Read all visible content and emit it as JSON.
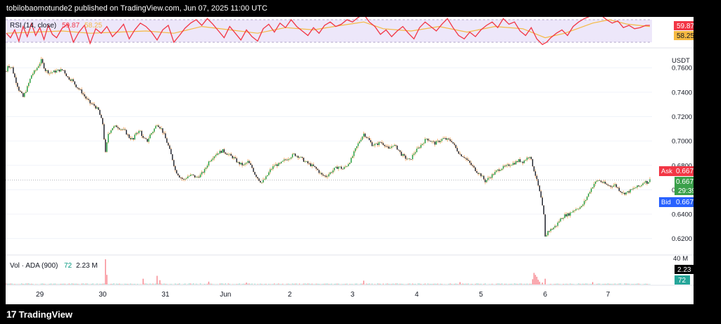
{
  "header": {
    "text": "tobilobaomotunde2 published on TradingView.com, Jun 07, 2025 11:00 UTC"
  },
  "footer": {
    "logo_text": "TradingView",
    "logo_mark": "17"
  },
  "chart_data": {
    "type": "candlestick",
    "symbol": "ADA",
    "quote_unit": "USDT",
    "interval": "15",
    "x_ticks": [
      "29",
      "30",
      "31",
      "Jun",
      "2",
      "3",
      "4",
      "5",
      "6",
      "7"
    ],
    "price_axis": {
      "ticks": [
        "0.7600",
        "0.7400",
        "0.7200",
        "0.7000",
        "0.6800",
        "0.6600",
        "0.6400",
        "0.6200"
      ],
      "range": [
        0.61,
        0.774
      ]
    },
    "price_path": [
      [
        0,
        0.757
      ],
      [
        1,
        0.762
      ],
      [
        4,
        0.76
      ],
      [
        6,
        0.752
      ],
      [
        9,
        0.742
      ],
      [
        12,
        0.736
      ],
      [
        15,
        0.744
      ],
      [
        18,
        0.754
      ],
      [
        21,
        0.758
      ],
      [
        25,
        0.766
      ],
      [
        28,
        0.758
      ],
      [
        31,
        0.756
      ],
      [
        35,
        0.757
      ],
      [
        38,
        0.758
      ],
      [
        41,
        0.758
      ],
      [
        44,
        0.752
      ],
      [
        47,
        0.75
      ],
      [
        50,
        0.745
      ],
      [
        54,
        0.74
      ],
      [
        57,
        0.735
      ],
      [
        60,
        0.731
      ],
      [
        63,
        0.729
      ],
      [
        66,
        0.725
      ],
      [
        69,
        0.714
      ],
      [
        71,
        0.69
      ],
      [
        73,
        0.706
      ],
      [
        76,
        0.711
      ],
      [
        79,
        0.712
      ],
      [
        82,
        0.71
      ],
      [
        85,
        0.708
      ],
      [
        88,
        0.703
      ],
      [
        91,
        0.701
      ],
      [
        93,
        0.707
      ],
      [
        96,
        0.708
      ],
      [
        98,
        0.702
      ],
      [
        101,
        0.7
      ],
      [
        103,
        0.705
      ],
      [
        105,
        0.708
      ],
      [
        108,
        0.714
      ],
      [
        111,
        0.71
      ],
      [
        113,
        0.705
      ],
      [
        116,
        0.696
      ],
      [
        119,
        0.685
      ],
      [
        121,
        0.676
      ],
      [
        124,
        0.671
      ],
      [
        127,
        0.668
      ],
      [
        130,
        0.671
      ],
      [
        133,
        0.672
      ],
      [
        136,
        0.67
      ],
      [
        139,
        0.672
      ],
      [
        142,
        0.676
      ],
      [
        145,
        0.683
      ],
      [
        148,
        0.687
      ],
      [
        151,
        0.69
      ],
      [
        155,
        0.692
      ],
      [
        159,
        0.689
      ],
      [
        163,
        0.686
      ],
      [
        166,
        0.682
      ],
      [
        170,
        0.68
      ],
      [
        173,
        0.683
      ],
      [
        176,
        0.678
      ],
      [
        178,
        0.673
      ],
      [
        181,
        0.668
      ],
      [
        183,
        0.666
      ],
      [
        186,
        0.67
      ],
      [
        189,
        0.676
      ],
      [
        192,
        0.68
      ],
      [
        196,
        0.681
      ],
      [
        199,
        0.684
      ],
      [
        202,
        0.686
      ],
      [
        206,
        0.689
      ],
      [
        210,
        0.687
      ],
      [
        214,
        0.683
      ],
      [
        217,
        0.681
      ],
      [
        220,
        0.679
      ],
      [
        223,
        0.676
      ],
      [
        226,
        0.672
      ],
      [
        229,
        0.671
      ],
      [
        232,
        0.674
      ],
      [
        235,
        0.677
      ],
      [
        238,
        0.679
      ],
      [
        241,
        0.677
      ],
      [
        244,
        0.68
      ],
      [
        247,
        0.685
      ],
      [
        250,
        0.693
      ],
      [
        253,
        0.7
      ],
      [
        256,
        0.706
      ],
      [
        259,
        0.702
      ],
      [
        262,
        0.697
      ],
      [
        265,
        0.697
      ],
      [
        268,
        0.699
      ],
      [
        271,
        0.697
      ],
      [
        274,
        0.693
      ],
      [
        277,
        0.697
      ],
      [
        280,
        0.694
      ],
      [
        283,
        0.689
      ],
      [
        286,
        0.686
      ],
      [
        289,
        0.684
      ],
      [
        292,
        0.69
      ],
      [
        295,
        0.694
      ],
      [
        298,
        0.698
      ],
      [
        301,
        0.702
      ],
      [
        304,
        0.7
      ],
      [
        307,
        0.698
      ],
      [
        310,
        0.7
      ],
      [
        313,
        0.702
      ],
      [
        316,
        0.701
      ],
      [
        319,
        0.7
      ],
      [
        322,
        0.694
      ],
      [
        325,
        0.689
      ],
      [
        328,
        0.687
      ],
      [
        331,
        0.683
      ],
      [
        334,
        0.679
      ],
      [
        337,
        0.675
      ],
      [
        340,
        0.672
      ],
      [
        343,
        0.667
      ],
      [
        346,
        0.67
      ],
      [
        349,
        0.673
      ],
      [
        352,
        0.676
      ],
      [
        355,
        0.678
      ],
      [
        358,
        0.679
      ],
      [
        361,
        0.681
      ],
      [
        364,
        0.682
      ],
      [
        367,
        0.684
      ],
      [
        370,
        0.683
      ],
      [
        373,
        0.686
      ],
      [
        375,
        0.688
      ],
      [
        377,
        0.68
      ],
      [
        379,
        0.672
      ],
      [
        381,
        0.663
      ],
      [
        383,
        0.653
      ],
      [
        385,
        0.639
      ],
      [
        386,
        0.621
      ],
      [
        388,
        0.626
      ],
      [
        391,
        0.628
      ],
      [
        394,
        0.631
      ],
      [
        397,
        0.636
      ],
      [
        400,
        0.639
      ],
      [
        403,
        0.64
      ],
      [
        406,
        0.643
      ],
      [
        409,
        0.645
      ],
      [
        412,
        0.646
      ],
      [
        415,
        0.652
      ],
      [
        418,
        0.659
      ],
      [
        421,
        0.665
      ],
      [
        424,
        0.668
      ],
      [
        427,
        0.666
      ],
      [
        430,
        0.664
      ],
      [
        433,
        0.663
      ],
      [
        436,
        0.664
      ],
      [
        439,
        0.66
      ],
      [
        442,
        0.657
      ],
      [
        445,
        0.658
      ],
      [
        448,
        0.66
      ],
      [
        451,
        0.662
      ],
      [
        454,
        0.663
      ],
      [
        457,
        0.667
      ],
      [
        459,
        0.666
      ],
      [
        461,
        0.668
      ]
    ],
    "labels": {
      "ask": {
        "tag": "Ask",
        "value": "0.6679"
      },
      "last": {
        "value": "0.6679",
        "countdown": "29:39"
      },
      "bid": {
        "tag": "Bid",
        "value": "0.6678"
      }
    },
    "rsi": {
      "label": "RSI (14, close)",
      "value": "59.87",
      "ma_value": "58.25",
      "range": [
        20,
        80
      ],
      "upper_band": 70,
      "lower_band": 30,
      "path": [
        [
          0,
          46
        ],
        [
          3,
          38
        ],
        [
          6,
          52
        ],
        [
          9,
          32
        ],
        [
          12,
          58
        ],
        [
          15,
          40
        ],
        [
          18,
          63
        ],
        [
          21,
          42
        ],
        [
          24,
          56
        ],
        [
          27,
          35
        ],
        [
          30,
          60
        ],
        [
          33,
          44
        ],
        [
          36,
          38
        ],
        [
          40,
          55
        ],
        [
          44,
          62
        ],
        [
          48,
          30
        ],
        [
          52,
          48
        ],
        [
          56,
          60
        ],
        [
          60,
          28
        ],
        [
          64,
          54
        ],
        [
          68,
          46
        ],
        [
          72,
          58
        ],
        [
          76,
          40
        ],
        [
          80,
          50
        ],
        [
          84,
          62
        ],
        [
          88,
          36
        ],
        [
          92,
          52
        ],
        [
          96,
          64
        ],
        [
          100,
          58
        ],
        [
          104,
          48
        ],
        [
          108,
          34
        ],
        [
          112,
          52
        ],
        [
          116,
          60
        ],
        [
          120,
          30
        ],
        [
          124,
          42
        ],
        [
          128,
          55
        ],
        [
          132,
          64
        ],
        [
          136,
          70
        ],
        [
          140,
          60
        ],
        [
          144,
          72
        ],
        [
          148,
          62
        ],
        [
          152,
          50
        ],
        [
          156,
          38
        ],
        [
          160,
          58
        ],
        [
          164,
          46
        ],
        [
          168,
          34
        ],
        [
          172,
          52
        ],
        [
          176,
          40
        ],
        [
          180,
          32
        ],
        [
          184,
          54
        ],
        [
          188,
          62
        ],
        [
          192,
          48
        ],
        [
          196,
          64
        ],
        [
          200,
          56
        ],
        [
          204,
          70
        ],
        [
          208,
          58
        ],
        [
          212,
          50
        ],
        [
          216,
          42
        ],
        [
          220,
          56
        ],
        [
          224,
          46
        ],
        [
          228,
          60
        ],
        [
          232,
          66
        ],
        [
          236,
          58
        ],
        [
          240,
          62
        ],
        [
          244,
          70
        ],
        [
          248,
          66
        ],
        [
          252,
          74
        ],
        [
          256,
          80
        ],
        [
          260,
          66
        ],
        [
          264,
          58
        ],
        [
          268,
          44
        ],
        [
          272,
          52
        ],
        [
          276,
          40
        ],
        [
          280,
          50
        ],
        [
          284,
          58
        ],
        [
          288,
          46
        ],
        [
          292,
          36
        ],
        [
          296,
          56
        ],
        [
          300,
          66
        ],
        [
          304,
          58
        ],
        [
          308,
          50
        ],
        [
          312,
          62
        ],
        [
          316,
          72
        ],
        [
          320,
          56
        ],
        [
          324,
          42
        ],
        [
          328,
          36
        ],
        [
          332,
          48
        ],
        [
          336,
          40
        ],
        [
          340,
          52
        ],
        [
          344,
          60
        ],
        [
          348,
          66
        ],
        [
          352,
          56
        ],
        [
          356,
          72
        ],
        [
          360,
          62
        ],
        [
          364,
          66
        ],
        [
          368,
          50
        ],
        [
          372,
          42
        ],
        [
          376,
          56
        ],
        [
          380,
          36
        ],
        [
          384,
          26
        ],
        [
          387,
          30
        ],
        [
          390,
          38
        ],
        [
          394,
          46
        ],
        [
          398,
          52
        ],
        [
          402,
          42
        ],
        [
          406,
          58
        ],
        [
          410,
          66
        ],
        [
          414,
          72
        ],
        [
          418,
          76
        ],
        [
          422,
          80
        ],
        [
          426,
          78
        ],
        [
          430,
          70
        ],
        [
          434,
          64
        ],
        [
          438,
          68
        ],
        [
          442,
          56
        ],
        [
          446,
          60
        ],
        [
          450,
          54
        ],
        [
          454,
          56
        ],
        [
          458,
          60
        ],
        [
          461,
          60
        ]
      ],
      "ma_path": [
        [
          0,
          46
        ],
        [
          20,
          48
        ],
        [
          40,
          50
        ],
        [
          60,
          46
        ],
        [
          80,
          48
        ],
        [
          100,
          50
        ],
        [
          120,
          46
        ],
        [
          140,
          58
        ],
        [
          160,
          52
        ],
        [
          180,
          46
        ],
        [
          200,
          56
        ],
        [
          220,
          52
        ],
        [
          240,
          60
        ],
        [
          256,
          66
        ],
        [
          270,
          54
        ],
        [
          290,
          50
        ],
        [
          310,
          58
        ],
        [
          330,
          48
        ],
        [
          350,
          58
        ],
        [
          370,
          54
        ],
        [
          386,
          38
        ],
        [
          400,
          46
        ],
        [
          420,
          64
        ],
        [
          432,
          70
        ],
        [
          445,
          62
        ],
        [
          461,
          58
        ]
      ]
    },
    "volume": {
      "label": "Vol · ADA (900)",
      "value_a": "72",
      "value_b": "2.23 M",
      "axis_tick": "40 M",
      "tag_value": "2.23 M",
      "tag_small": "72",
      "max": 55,
      "spikes": [
        [
          71,
          52
        ],
        [
          72,
          20
        ],
        [
          98,
          12
        ],
        [
          108,
          18
        ],
        [
          110,
          9
        ],
        [
          145,
          6
        ],
        [
          172,
          4
        ],
        [
          256,
          8
        ],
        [
          325,
          5
        ],
        [
          377,
          11
        ],
        [
          378,
          24
        ],
        [
          379,
          20
        ],
        [
          380,
          16
        ],
        [
          381,
          10
        ],
        [
          382,
          6
        ],
        [
          384,
          4
        ],
        [
          386,
          12
        ],
        [
          420,
          5
        ]
      ]
    }
  }
}
